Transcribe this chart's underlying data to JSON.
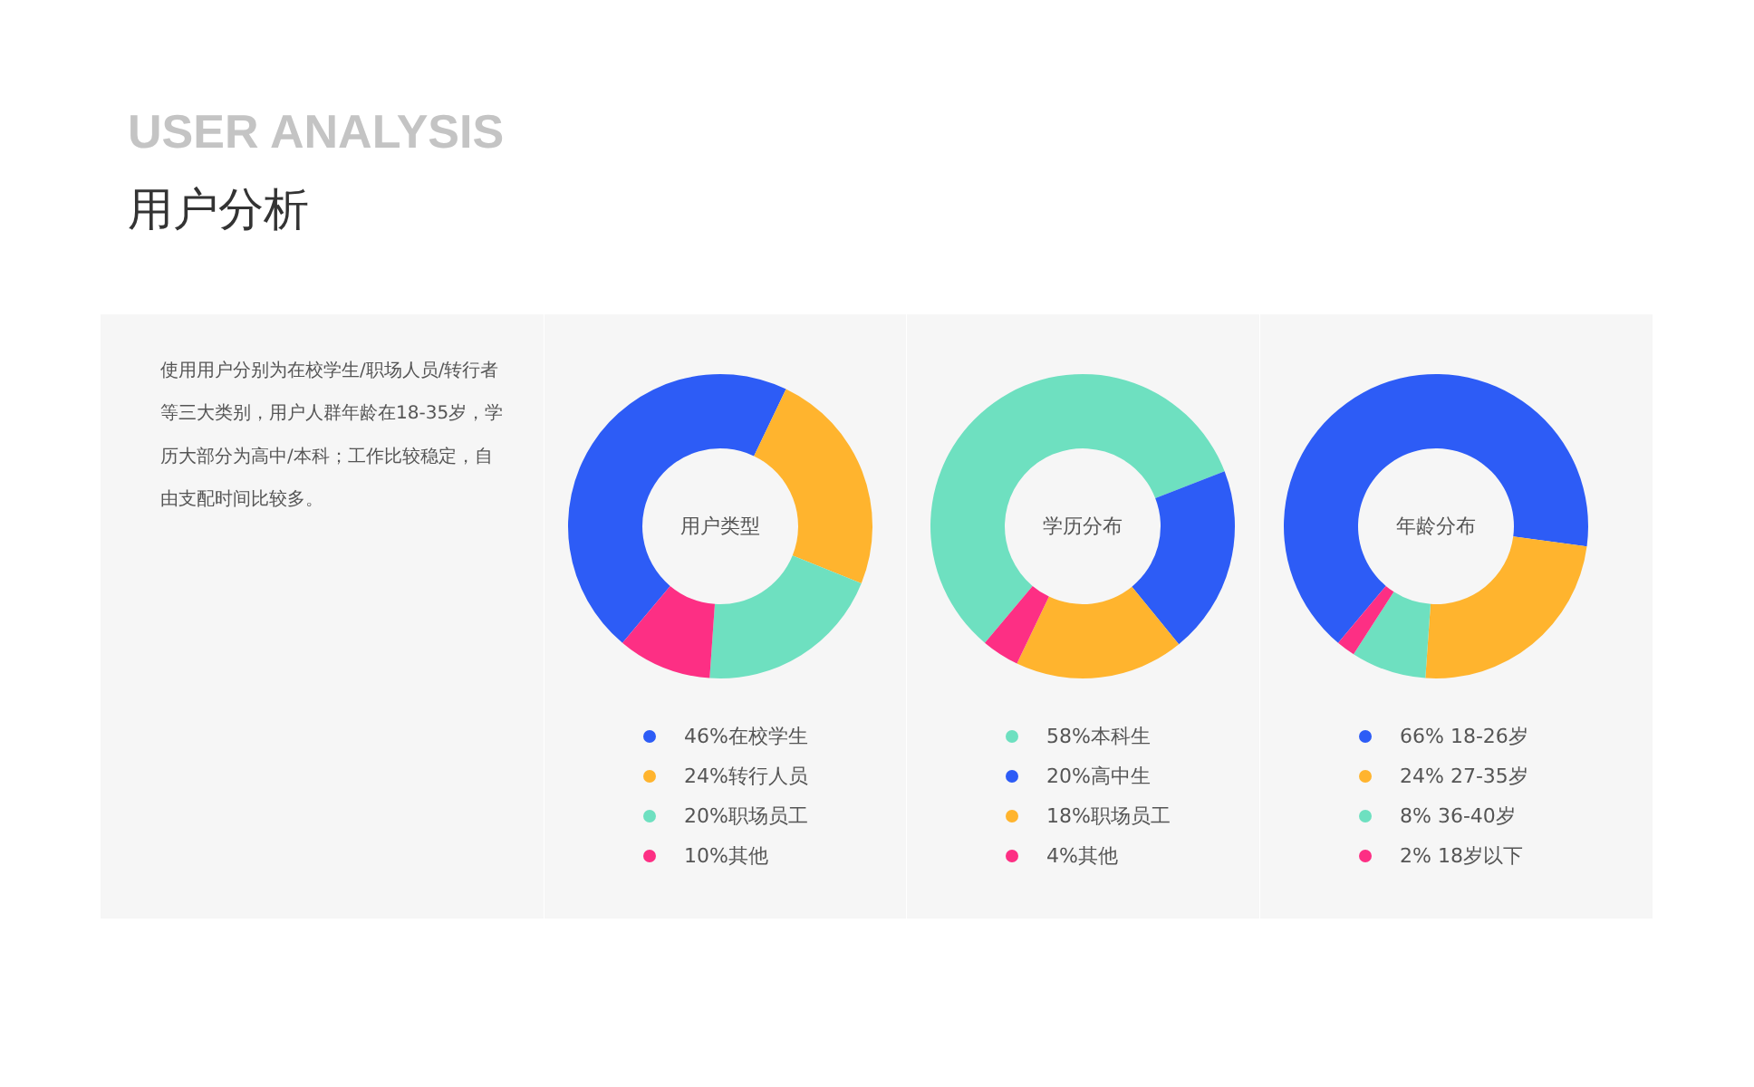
{
  "chart_data": [
    {
      "type": "other",
      "title": "USER ANALYSIS",
      "subtitle": "用户分析",
      "annotations": [
        "使用用户分别为在校学生/职场人员/转行者等三大类别，用户人群年龄在18-35岁，学历大部分为高中/本科；工作比较稳定，自由支配时间比较多。"
      ]
    },
    {
      "type": "donut",
      "title": "用户类型",
      "categories": [
        "46%在校学生",
        "24%转行人员",
        "20%职场员工",
        "10%其他"
      ],
      "values": [
        46,
        24,
        20,
        10
      ],
      "colors": [
        "#2d5cf6",
        "#ffb42e",
        "#6ee0c0",
        "#fd2f84"
      ],
      "legend": "bottom"
    },
    {
      "type": "donut",
      "title": "学历分布",
      "categories": [
        "58%本科生",
        "20%高中生",
        "18%职场员工",
        "4%其他"
      ],
      "values": [
        58,
        20,
        18,
        4
      ],
      "colors": [
        "#6ee0c0",
        "#2d5cf6",
        "#ffb42e",
        "#fd2f84"
      ],
      "legend": "bottom"
    },
    {
      "type": "donut",
      "title": "年龄分布",
      "categories": [
        "66% 18-26岁",
        "24% 27-35岁",
        "8% 36-40岁",
        "2% 18岁以下"
      ],
      "values": [
        66,
        24,
        8,
        2
      ],
      "colors": [
        "#2d5cf6",
        "#ffb42e",
        "#6ee0c0",
        "#fd2f84"
      ],
      "legend": "bottom"
    }
  ]
}
